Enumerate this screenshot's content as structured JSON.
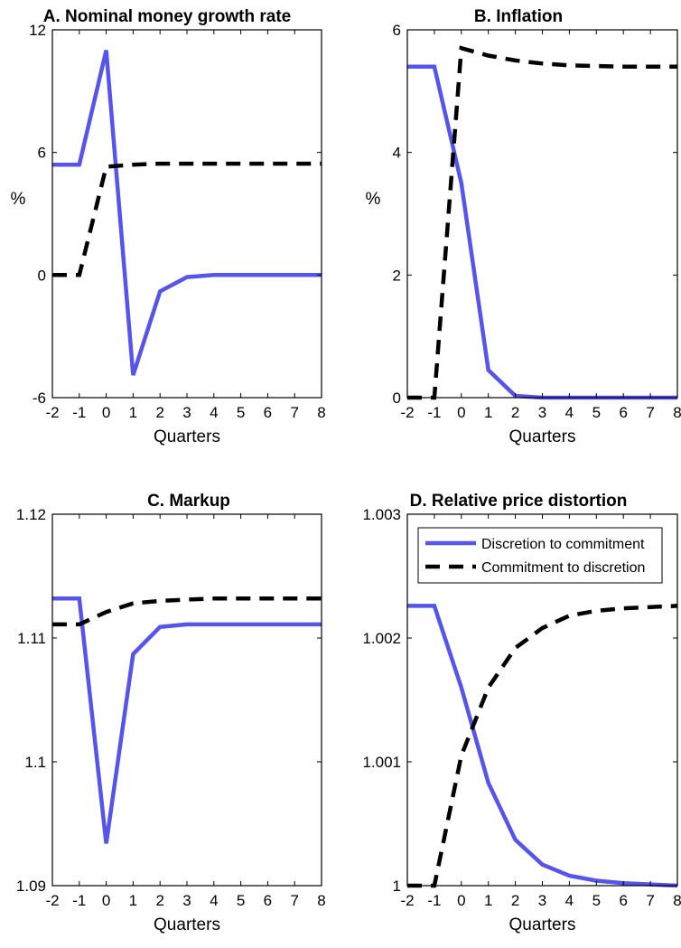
{
  "colors": {
    "discretion_to_commitment": "#5555ee",
    "commitment_to_discretion": "#000000"
  },
  "chart_data": [
    {
      "type": "line",
      "title": "A. Nominal money growth rate",
      "xlabel": "Quarters",
      "ylabel": "%",
      "xlim": [
        -2,
        8
      ],
      "ylim": [
        -6,
        12
      ],
      "xticks": [
        "-2",
        "-1",
        "0",
        "1",
        "2",
        "3",
        "4",
        "5",
        "6",
        "7",
        "8"
      ],
      "yticks": [
        "-6",
        "0",
        "6",
        "12"
      ],
      "grid": false,
      "series": [
        {
          "key": "d2c",
          "style": "solid",
          "x": [
            -2,
            -1,
            0,
            1,
            2,
            3,
            4,
            5,
            6,
            7,
            8
          ],
          "y": [
            5.4,
            5.4,
            11.0,
            -4.9,
            -0.8,
            -0.1,
            0.0,
            0.0,
            0.0,
            0.0,
            0.0
          ]
        },
        {
          "key": "c2d",
          "style": "dashed",
          "x": [
            -2,
            -1,
            0,
            1,
            2,
            3,
            4,
            5,
            6,
            7,
            8
          ],
          "y": [
            0.0,
            0.0,
            5.3,
            5.4,
            5.45,
            5.45,
            5.45,
            5.45,
            5.45,
            5.45,
            5.45
          ]
        }
      ]
    },
    {
      "type": "line",
      "title": "B. Inflation",
      "xlabel": "Quarters",
      "ylabel": "%",
      "xlim": [
        -2,
        8
      ],
      "ylim": [
        0,
        6
      ],
      "xticks": [
        "-2",
        "-1",
        "0",
        "1",
        "2",
        "3",
        "4",
        "5",
        "6",
        "7",
        "8"
      ],
      "yticks": [
        "0",
        "2",
        "4",
        "6"
      ],
      "grid": false,
      "series": [
        {
          "key": "d2c",
          "style": "solid",
          "x": [
            -2,
            -1,
            0,
            1,
            2,
            3,
            4,
            5,
            6,
            7,
            8
          ],
          "y": [
            5.4,
            5.4,
            3.5,
            0.45,
            0.03,
            0.0,
            0.0,
            0.0,
            0.0,
            0.0,
            0.0
          ]
        },
        {
          "key": "c2d",
          "style": "dashed",
          "x": [
            -2,
            -1,
            0,
            1,
            2,
            3,
            4,
            5,
            6,
            7,
            8
          ],
          "y": [
            0.0,
            0.0,
            5.7,
            5.58,
            5.5,
            5.45,
            5.42,
            5.41,
            5.4,
            5.4,
            5.4
          ]
        }
      ]
    },
    {
      "type": "line",
      "title": "C. Markup",
      "xlabel": "Quarters",
      "ylabel": "",
      "xlim": [
        -2,
        8
      ],
      "ylim": [
        1.09,
        1.12
      ],
      "xticks": [
        "-2",
        "-1",
        "0",
        "1",
        "2",
        "3",
        "4",
        "5",
        "6",
        "7",
        "8"
      ],
      "yticks": [
        "1.09",
        "1.1",
        "1.11",
        "1.12"
      ],
      "grid": false,
      "series": [
        {
          "key": "d2c",
          "style": "solid",
          "x": [
            -2,
            -1,
            0,
            1,
            2,
            3,
            4,
            5,
            6,
            7,
            8
          ],
          "y": [
            1.1132,
            1.1132,
            1.0934,
            1.1087,
            1.1109,
            1.1111,
            1.1111,
            1.1111,
            1.1111,
            1.1111,
            1.1111
          ]
        },
        {
          "key": "c2d",
          "style": "dashed",
          "x": [
            -2,
            -1,
            0,
            1,
            2,
            3,
            4,
            5,
            6,
            7,
            8
          ],
          "y": [
            1.1111,
            1.1111,
            1.1121,
            1.1128,
            1.113,
            1.1131,
            1.1132,
            1.1132,
            1.1132,
            1.1132,
            1.1132
          ]
        }
      ]
    },
    {
      "type": "line",
      "title": "D. Relative price distortion",
      "xlabel": "Quarters",
      "ylabel": "",
      "xlim": [
        -2,
        8
      ],
      "ylim": [
        1.0,
        1.003
      ],
      "xticks": [
        "-2",
        "-1",
        "0",
        "1",
        "2",
        "3",
        "4",
        "5",
        "6",
        "7",
        "8"
      ],
      "yticks": [
        "1",
        "1.001",
        "1.002",
        "1.003"
      ],
      "grid": false,
      "legend_position": "top",
      "legend": [
        "Discretion to commitment",
        "Commitment to discretion"
      ],
      "series": [
        {
          "key": "d2c",
          "style": "solid",
          "x": [
            -2,
            -1,
            0,
            1,
            2,
            3,
            4,
            5,
            6,
            7,
            8
          ],
          "y": [
            1.00226,
            1.00226,
            1.0016,
            1.00083,
            1.00037,
            1.00017,
            1.00008,
            1.00004,
            1.00002,
            1.00001,
            1.0
          ]
        },
        {
          "key": "c2d",
          "style": "dashed",
          "x": [
            -2,
            -1,
            0,
            1,
            2,
            3,
            4,
            5,
            6,
            7,
            8
          ],
          "y": [
            1.0,
            1.0,
            1.00105,
            1.0016,
            1.00192,
            1.00208,
            1.00218,
            1.00222,
            1.00224,
            1.00225,
            1.00226
          ]
        }
      ]
    }
  ]
}
